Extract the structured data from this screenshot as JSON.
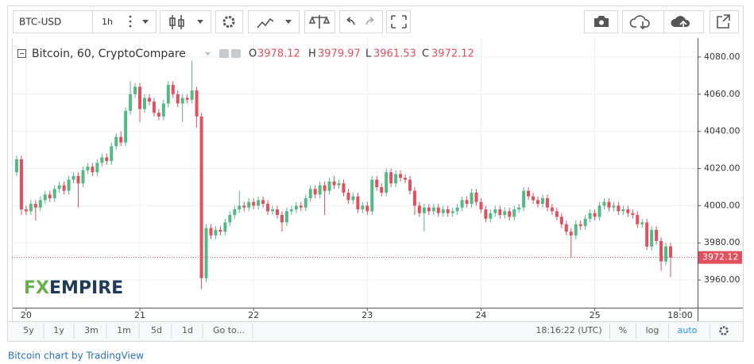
{
  "toolbar": {
    "symbol": "BTC-USD",
    "interval": "1h"
  },
  "chart_data": {
    "type": "candlestick",
    "title": "Bitcoin, 60, CryptoCompare",
    "ohlc_labels": [
      "O",
      "H",
      "L",
      "C"
    ],
    "watermark": [
      "FX",
      "EMPIRE"
    ],
    "up_color": "#53b987",
    "down_color": "#e0505e",
    "grid": true,
    "x": [
      -2,
      -1,
      0,
      1,
      2,
      3,
      4,
      5,
      6,
      7,
      8,
      9,
      10,
      11,
      12,
      13,
      14,
      15,
      16,
      17,
      18,
      19,
      20,
      21,
      22,
      23,
      24,
      25,
      26,
      27,
      28,
      29,
      30,
      31,
      32,
      33,
      34,
      35,
      36,
      37,
      38,
      39,
      40,
      41,
      42,
      43,
      44,
      45,
      46,
      47,
      48,
      49,
      50,
      51,
      52,
      53,
      54,
      55,
      56,
      57,
      58,
      59,
      60,
      61,
      62,
      63,
      64,
      65,
      66,
      67,
      68,
      69,
      70,
      71,
      72,
      73,
      74,
      75,
      76,
      77,
      78,
      79,
      80,
      81,
      82,
      83,
      84,
      85,
      86,
      87,
      88,
      89,
      90,
      91,
      92,
      93,
      94,
      95,
      96,
      97,
      98,
      99,
      100,
      101,
      102,
      103,
      104,
      105,
      106,
      107,
      108,
      109,
      110,
      111,
      112,
      113,
      114,
      115,
      116,
      117,
      118,
      119,
      120,
      121,
      122,
      123,
      124,
      125,
      126,
      127,
      128,
      129,
      130,
      131,
      132,
      133,
      134,
      135,
      136
    ],
    "open": [
      4018,
      4025,
      3998,
      3997,
      4001,
      3999,
      4003,
      4006,
      4004,
      4009,
      4011,
      4008,
      4014,
      4016,
      4012,
      4019,
      4021,
      4018,
      4023,
      4026,
      4024,
      4032,
      4037,
      4034,
      4051,
      4060,
      4064,
      4052,
      4058,
      4056,
      4050,
      4048,
      4055,
      4065,
      4060,
      4055,
      4058,
      4057,
      4062,
      4048,
      3961,
      3988,
      3984,
      3987,
      3986,
      3991,
      3995,
      3998,
      4000,
      3999,
      4002,
      4000,
      4003,
      4001,
      3997,
      3998,
      3995,
      3991,
      3997,
      3998,
      4000,
      3999,
      4004,
      4009,
      4006,
      4011,
      4008,
      4013,
      4011,
      4012,
      4007,
      4003,
      4005,
      3998,
      4000,
      3997,
      4014,
      4010,
      4007,
      4018,
      4012,
      4017,
      4015,
      4014,
      4008,
      4000,
      3996,
      3999,
      3997,
      3999,
      3996,
      3998,
      3996,
      3997,
      3999,
      4003,
      4001,
      4007,
      4002,
      3998,
      3993,
      3996,
      3998,
      3995,
      3997,
      3994,
      3998,
      3999,
      4008,
      4005,
      4003,
      4001,
      4004,
      3999,
      3997,
      3994,
      3990,
      3986,
      3984,
      3990,
      3989,
      3993,
      3996,
      3994,
      4000,
      4002,
      3999,
      4000,
      3997,
      3998,
      3996,
      3995,
      3990,
      3991,
      3978,
      3987,
      3981,
      3970,
      3978.12
    ],
    "high": [
      4027,
      4027,
      4000,
      4003,
      4003,
      4005,
      4008,
      4008,
      4011,
      4013,
      4013,
      4016,
      4018,
      4018,
      4021,
      4023,
      4023,
      4025,
      4028,
      4028,
      4034,
      4039,
      4040,
      4053,
      4067,
      4066,
      4066,
      4060,
      4060,
      4058,
      4052,
      4057,
      4067,
      4067,
      4062,
      4060,
      4060,
      4078,
      4064,
      4050,
      3990,
      3990,
      3989,
      3989,
      3993,
      3997,
      4000,
      4008,
      4002,
      4004,
      4004,
      4005,
      4005,
      4003,
      4000,
      4000,
      3997,
      3999,
      4000,
      4002,
      4002,
      4006,
      4011,
      4011,
      4013,
      4013,
      4015,
      4016,
      4014,
      4014,
      4009,
      4007,
      4007,
      4002,
      4002,
      4016,
      4016,
      4012,
      4020,
      4020,
      4019,
      4019,
      4017,
      4016,
      4010,
      4002,
      4001,
      4001,
      4001,
      4001,
      4000,
      4000,
      3999,
      4001,
      4005,
      4005,
      4009,
      4009,
      4004,
      4000,
      3998,
      4000,
      4000,
      3999,
      3999,
      4000,
      4001,
      4010,
      4010,
      4007,
      4005,
      4006,
      4006,
      4001,
      3999,
      3996,
      3992,
      3988,
      3992,
      3992,
      3995,
      3998,
      3998,
      4002,
      4004,
      4004,
      4002,
      4002,
      4000,
      4000,
      3998,
      3997,
      3993,
      3993,
      3989,
      3989,
      3983,
      3980,
      3979.97
    ],
    "low": [
      4016,
      3995,
      3995,
      3995,
      3992,
      3997,
      4001,
      4002,
      4002,
      4007,
      4006,
      4006,
      4012,
      3999,
      4010,
      4017,
      4016,
      4016,
      4021,
      4022,
      4022,
      4030,
      4032,
      4032,
      4049,
      4058,
      4045,
      4050,
      4054,
      4048,
      4046,
      4046,
      4053,
      4058,
      4053,
      4045,
      4055,
      4055,
      4042,
      3955,
      3959,
      3982,
      3982,
      3984,
      3984,
      3989,
      3993,
      3996,
      3997,
      3997,
      3998,
      3998,
      3999,
      3995,
      3995,
      3993,
      3986,
      3989,
      3995,
      3996,
      3997,
      3997,
      4002,
      4004,
      4004,
      3995,
      4006,
      4009,
      4009,
      4005,
      4001,
      4001,
      3996,
      3996,
      3995,
      3995,
      4008,
      4005,
      4005,
      4010,
      4010,
      4013,
      4012,
      4006,
      3995,
      3994,
      3986,
      3995,
      3995,
      3994,
      3994,
      3994,
      3994,
      3995,
      3997,
      3999,
      3999,
      4000,
      3996,
      3991,
      3991,
      3994,
      3993,
      3993,
      3992,
      3992,
      3996,
      3997,
      4003,
      4001,
      3999,
      3999,
      3997,
      3995,
      3992,
      3988,
      3984,
      3972,
      3982,
      3987,
      3987,
      3991,
      3992,
      3992,
      3998,
      3997,
      3997,
      3995,
      3995,
      3994,
      3993,
      3988,
      3988,
      3976,
      3976,
      3979,
      3965,
      3968,
      3961.53
    ],
    "close": [
      4025,
      3998,
      3997,
      4001,
      3999,
      4003,
      4006,
      4004,
      4009,
      4011,
      4008,
      4014,
      4016,
      4012,
      4019,
      4021,
      4018,
      4023,
      4026,
      4024,
      4032,
      4037,
      4034,
      4051,
      4060,
      4064,
      4052,
      4058,
      4056,
      4050,
      4048,
      4055,
      4065,
      4060,
      4055,
      4058,
      4057,
      4062,
      4048,
      3961,
      3988,
      3984,
      3987,
      3986,
      3991,
      3995,
      3998,
      4000,
      3999,
      4002,
      4000,
      4003,
      4001,
      3997,
      3998,
      3995,
      3991,
      3997,
      3998,
      4000,
      3999,
      4004,
      4009,
      4006,
      4011,
      4008,
      4013,
      4011,
      4012,
      4007,
      4003,
      4005,
      3998,
      4000,
      3997,
      4014,
      4010,
      4007,
      4018,
      4012,
      4017,
      4015,
      4014,
      4008,
      4000,
      3996,
      3999,
      3997,
      3999,
      3996,
      3998,
      3996,
      3997,
      3999,
      4003,
      4001,
      4007,
      4002,
      3998,
      3993,
      3996,
      3998,
      3995,
      3997,
      3994,
      3998,
      3999,
      4008,
      4005,
      4003,
      4001,
      4004,
      3999,
      3997,
      3994,
      3990,
      3986,
      3984,
      3990,
      3989,
      3993,
      3996,
      3994,
      4000,
      4002,
      3999,
      4000,
      3997,
      3998,
      3996,
      3995,
      3990,
      3991,
      3978,
      3987,
      3981,
      3970,
      3978.12,
      3972.12
    ],
    "xlim": [
      -3,
      141.7
    ],
    "xticks": [
      {
        "value": 0,
        "label": "20"
      },
      {
        "value": 24,
        "label": "21"
      },
      {
        "value": 48,
        "label": "22"
      },
      {
        "value": 72,
        "label": "23"
      },
      {
        "value": 96,
        "label": "24"
      },
      {
        "value": 120,
        "label": "25"
      },
      {
        "value": 138,
        "label": "18:00"
      }
    ],
    "ylim": [
      3945.1,
      4090.2
    ],
    "yticks": [
      {
        "value": 3960,
        "label": "3960.00"
      },
      {
        "value": 3980,
        "label": "3980.00"
      },
      {
        "value": 4000,
        "label": "4000.00"
      },
      {
        "value": 4020,
        "label": "4020.00"
      },
      {
        "value": 4040,
        "label": "4040.00"
      },
      {
        "value": 4060,
        "label": "4060.00"
      },
      {
        "value": 4080,
        "label": "4080.00"
      }
    ]
  },
  "bottom_bar": {
    "ranges": [
      "5y",
      "1y",
      "3m",
      "1m",
      "5d",
      "1d",
      "Go to..."
    ],
    "clock": "18:16:22 (UTC)",
    "percent": "%",
    "log": "log",
    "auto": "auto"
  },
  "footer": "Bitcoin chart by TradingView"
}
